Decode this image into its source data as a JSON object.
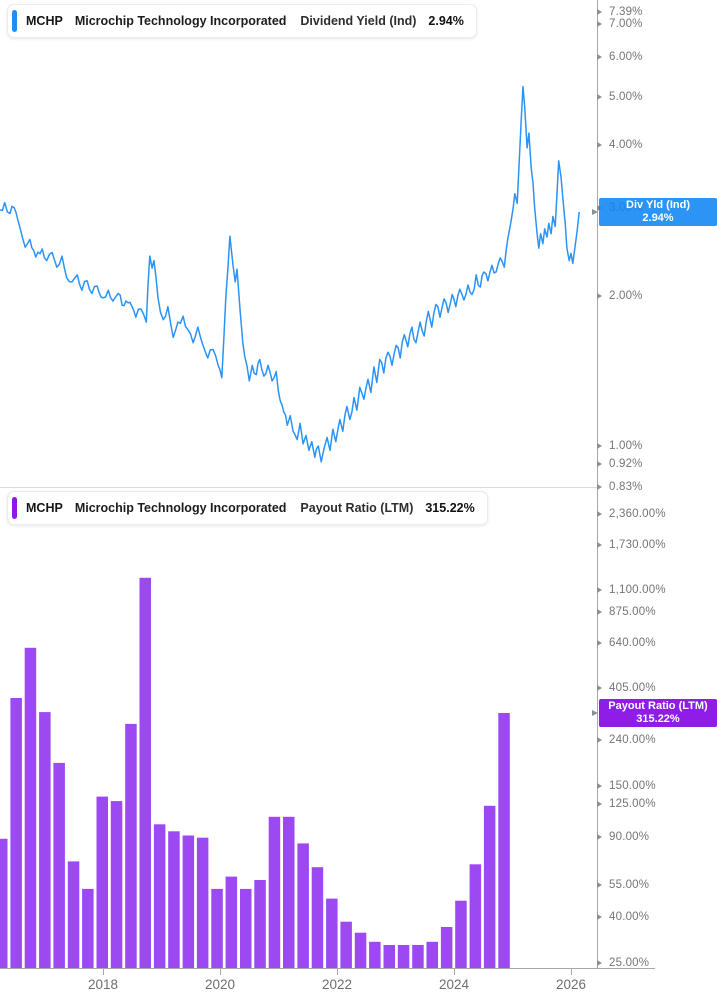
{
  "company": {
    "symbol": "MCHP",
    "name": "Microchip Technology Incorporated"
  },
  "charts": [
    {
      "header": {
        "symbol": "MCHP",
        "name": "Microchip Technology Incorporated",
        "metric": "Dividend Yield (Ind)",
        "value": "2.94%"
      },
      "badge": {
        "line1": "Div Yld (Ind)",
        "line2": "2.94%",
        "value": 2.94
      },
      "colors": {
        "accent": "#1D8EF2",
        "line": "#2B93F5",
        "badge": "rgba(13,132,242,0.87)"
      },
      "y_axis": {
        "scale": "log",
        "ticks": [
          {
            "label": "7.39%",
            "value": 7.39
          },
          {
            "label": "7.00%",
            "value": 7.0
          },
          {
            "label": "6.00%",
            "value": 6.0
          },
          {
            "label": "5.00%",
            "value": 5.0
          },
          {
            "label": "4.00%",
            "value": 4.0
          },
          {
            "label": "3.00%",
            "value": 3.0
          },
          {
            "label": "2.00%",
            "value": 2.0
          },
          {
            "label": "1.00%",
            "value": 1.0
          },
          {
            "label": "0.92%",
            "value": 0.92
          },
          {
            "label": "0.83%",
            "value": 0.83
          }
        ]
      },
      "chart_data": {
        "type": "line",
        "title": "MCHP Dividend Yield (Ind)",
        "unit": "%",
        "grid": false,
        "x_range": [
          2016.24,
          2026.14
        ],
        "y_range": [
          0.83,
          7.39
        ],
        "last_value": 2.94,
        "points": [
          [
            2016.24,
            2.97
          ],
          [
            2016.32,
            3.07
          ],
          [
            2016.41,
            2.92
          ],
          [
            2016.48,
            3.0
          ],
          [
            2016.58,
            2.74
          ],
          [
            2016.67,
            2.5
          ],
          [
            2016.75,
            2.59
          ],
          [
            2016.85,
            2.39
          ],
          [
            2016.96,
            2.48
          ],
          [
            2017.04,
            2.35
          ],
          [
            2017.13,
            2.44
          ],
          [
            2017.21,
            2.28
          ],
          [
            2017.3,
            2.4
          ],
          [
            2017.38,
            2.17
          ],
          [
            2017.47,
            2.13
          ],
          [
            2017.56,
            2.2
          ],
          [
            2017.64,
            2.05
          ],
          [
            2017.73,
            2.14
          ],
          [
            2017.81,
            2.02
          ],
          [
            2017.9,
            2.09
          ],
          [
            2018.0,
            1.98
          ],
          [
            2018.09,
            2.05
          ],
          [
            2018.17,
            1.95
          ],
          [
            2018.26,
            2.02
          ],
          [
            2018.36,
            1.91
          ],
          [
            2018.46,
            1.94
          ],
          [
            2018.56,
            1.81
          ],
          [
            2018.65,
            1.88
          ],
          [
            2018.74,
            1.77
          ],
          [
            2018.8,
            2.4
          ],
          [
            2018.84,
            2.27
          ],
          [
            2018.87,
            2.35
          ],
          [
            2018.94,
            1.98
          ],
          [
            2019.03,
            1.79
          ],
          [
            2019.11,
            1.9
          ],
          [
            2019.2,
            1.65
          ],
          [
            2019.28,
            1.77
          ],
          [
            2019.37,
            1.82
          ],
          [
            2019.45,
            1.71
          ],
          [
            2019.54,
            1.61
          ],
          [
            2019.62,
            1.73
          ],
          [
            2019.71,
            1.59
          ],
          [
            2019.79,
            1.5
          ],
          [
            2019.88,
            1.56
          ],
          [
            2019.97,
            1.45
          ],
          [
            2020.03,
            1.37
          ],
          [
            2020.1,
            1.98
          ],
          [
            2020.17,
            2.63
          ],
          [
            2020.22,
            2.31
          ],
          [
            2020.26,
            2.13
          ],
          [
            2020.29,
            2.26
          ],
          [
            2020.34,
            1.89
          ],
          [
            2020.39,
            1.61
          ],
          [
            2020.46,
            1.45
          ],
          [
            2020.5,
            1.35
          ],
          [
            2020.55,
            1.45
          ],
          [
            2020.62,
            1.39
          ],
          [
            2020.68,
            1.49
          ],
          [
            2020.75,
            1.38
          ],
          [
            2020.82,
            1.45
          ],
          [
            2020.89,
            1.35
          ],
          [
            2020.96,
            1.41
          ],
          [
            2021.03,
            1.23
          ],
          [
            2021.09,
            1.17
          ],
          [
            2021.15,
            1.1
          ],
          [
            2021.2,
            1.15
          ],
          [
            2021.25,
            1.07
          ],
          [
            2021.32,
            1.03
          ],
          [
            2021.37,
            1.11
          ],
          [
            2021.42,
            1.01
          ],
          [
            2021.47,
            1.05
          ],
          [
            2021.52,
            0.98
          ],
          [
            2021.57,
            1.02
          ],
          [
            2021.62,
            0.95
          ],
          [
            2021.68,
            1.0
          ],
          [
            2021.73,
            0.93
          ],
          [
            2021.78,
            0.99
          ],
          [
            2021.83,
            1.04
          ],
          [
            2021.88,
            0.98
          ],
          [
            2021.93,
            1.08
          ],
          [
            2021.98,
            1.02
          ],
          [
            2022.05,
            1.13
          ],
          [
            2022.1,
            1.07
          ],
          [
            2022.17,
            1.2
          ],
          [
            2022.22,
            1.13
          ],
          [
            2022.29,
            1.25
          ],
          [
            2022.34,
            1.18
          ],
          [
            2022.39,
            1.31
          ],
          [
            2022.46,
            1.24
          ],
          [
            2022.53,
            1.36
          ],
          [
            2022.58,
            1.28
          ],
          [
            2022.63,
            1.44
          ],
          [
            2022.68,
            1.34
          ],
          [
            2022.73,
            1.49
          ],
          [
            2022.8,
            1.4
          ],
          [
            2022.87,
            1.54
          ],
          [
            2022.94,
            1.45
          ],
          [
            2023.01,
            1.59
          ],
          [
            2023.08,
            1.5
          ],
          [
            2023.15,
            1.67
          ],
          [
            2023.21,
            1.58
          ],
          [
            2023.28,
            1.73
          ],
          [
            2023.35,
            1.61
          ],
          [
            2023.42,
            1.77
          ],
          [
            2023.49,
            1.66
          ],
          [
            2023.56,
            1.86
          ],
          [
            2023.62,
            1.73
          ],
          [
            2023.69,
            1.92
          ],
          [
            2023.76,
            1.81
          ],
          [
            2023.83,
            1.97
          ],
          [
            2023.9,
            1.85
          ],
          [
            2023.97,
            2.01
          ],
          [
            2024.03,
            1.9
          ],
          [
            2024.1,
            2.06
          ],
          [
            2024.17,
            1.96
          ],
          [
            2024.24,
            2.1
          ],
          [
            2024.31,
            2.01
          ],
          [
            2024.38,
            2.2
          ],
          [
            2024.45,
            2.08
          ],
          [
            2024.51,
            2.23
          ],
          [
            2024.58,
            2.14
          ],
          [
            2024.65,
            2.3
          ],
          [
            2024.72,
            2.23
          ],
          [
            2024.79,
            2.38
          ],
          [
            2024.86,
            2.28
          ],
          [
            2024.92,
            2.6
          ],
          [
            2024.97,
            2.79
          ],
          [
            2025.01,
            2.99
          ],
          [
            2025.04,
            3.2
          ],
          [
            2025.08,
            3.06
          ],
          [
            2025.11,
            3.6
          ],
          [
            2025.15,
            4.53
          ],
          [
            2025.18,
            5.24
          ],
          [
            2025.21,
            4.74
          ],
          [
            2025.25,
            3.95
          ],
          [
            2025.28,
            4.23
          ],
          [
            2025.32,
            3.6
          ],
          [
            2025.35,
            3.36
          ],
          [
            2025.38,
            2.99
          ],
          [
            2025.42,
            2.66
          ],
          [
            2025.45,
            2.49
          ],
          [
            2025.48,
            2.66
          ],
          [
            2025.52,
            2.54
          ],
          [
            2025.55,
            2.72
          ],
          [
            2025.59,
            2.62
          ],
          [
            2025.62,
            2.79
          ],
          [
            2025.66,
            2.66
          ],
          [
            2025.69,
            2.88
          ],
          [
            2025.73,
            2.75
          ],
          [
            2025.76,
            3.2
          ],
          [
            2025.79,
            3.72
          ],
          [
            2025.83,
            3.44
          ],
          [
            2025.86,
            3.14
          ],
          [
            2025.9,
            2.79
          ],
          [
            2025.93,
            2.49
          ],
          [
            2025.97,
            2.35
          ],
          [
            2026.0,
            2.43
          ],
          [
            2026.03,
            2.32
          ],
          [
            2026.07,
            2.51
          ],
          [
            2026.1,
            2.66
          ],
          [
            2026.14,
            2.94
          ]
        ]
      }
    },
    {
      "header": {
        "symbol": "MCHP",
        "name": "Microchip Technology Incorporated",
        "metric": "Payout Ratio (LTM)",
        "value": "315.22%"
      },
      "badge": {
        "line1": "Payout Ratio (LTM)",
        "line2": "315.22%",
        "value": 315.22
      },
      "colors": {
        "accent": "#8D18E9",
        "bar": "#9C49F2",
        "badge": "rgba(136,17,231,0.95)"
      },
      "y_axis": {
        "scale": "log",
        "ticks": [
          {
            "label": "2,360.00%",
            "value": 2360
          },
          {
            "label": "1,730.00%",
            "value": 1730
          },
          {
            "label": "1,100.00%",
            "value": 1100
          },
          {
            "label": "875.00%",
            "value": 875
          },
          {
            "label": "640.00%",
            "value": 640
          },
          {
            "label": "405.00%",
            "value": 405
          },
          {
            "label": "240.00%",
            "value": 240
          },
          {
            "label": "150.00%",
            "value": 150
          },
          {
            "label": "125.00%",
            "value": 125
          },
          {
            "label": "90.00%",
            "value": 90
          },
          {
            "label": "55.00%",
            "value": 55
          },
          {
            "label": "40.00%",
            "value": 40
          },
          {
            "label": "25.00%",
            "value": 25
          }
        ]
      },
      "chart_data": {
        "type": "bar",
        "title": "MCHP Payout Ratio (LTM)",
        "unit": "%",
        "grid": false,
        "x_start": 2016.27,
        "x_step": 0.2453,
        "y_range": [
          25,
          2360
        ],
        "last_value": 315.22,
        "values": [
          88,
          367,
          610,
          318,
          190,
          70,
          53,
          135,
          129,
          282,
          1240,
          102,
          95,
          91,
          89,
          53,
          60,
          53,
          58,
          110,
          110,
          84,
          66,
          48,
          38,
          34,
          31,
          30,
          30,
          30,
          31,
          36,
          47,
          68,
          123,
          315.22
        ]
      }
    }
  ],
  "x_axis": {
    "labels": [
      {
        "text": "2018",
        "year": 2018
      },
      {
        "text": "2020",
        "year": 2020
      },
      {
        "text": "2022",
        "year": 2022
      },
      {
        "text": "2024",
        "year": 2024
      },
      {
        "text": "2026",
        "year": 2026
      }
    ]
  }
}
